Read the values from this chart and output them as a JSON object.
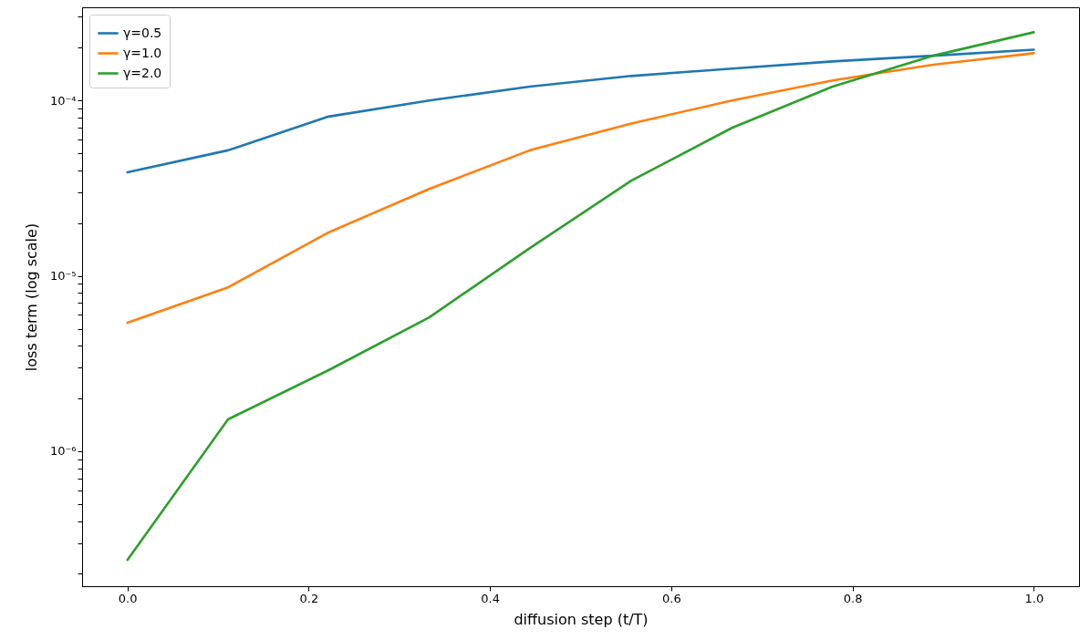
{
  "chart_data": {
    "type": "line",
    "xlabel": "diffusion step (t/T)",
    "ylabel": "loss term (log scale)",
    "log": "y",
    "grid": false,
    "legend": "top left",
    "marker": "none",
    "line_style": "solid",
    "x": [
      0,
      0.111,
      0.222,
      0.333,
      0.444,
      0.556,
      0.667,
      0.778,
      0.889,
      1.0
    ],
    "xlim": [
      -0.05,
      1.05
    ],
    "xticks": [
      {
        "value": 0,
        "label": "0.0"
      },
      0.2,
      0.4,
      0.6,
      0.8,
      {
        "value": 1,
        "label": "1.0"
      }
    ],
    "ylim": [
      1.7e-07,
      0.00034
    ],
    "yticks": [
      {
        "value": 2e-07,
        "label": null
      },
      {
        "value": 3e-07,
        "label": null
      },
      {
        "value": 4e-07,
        "label": null
      },
      {
        "value": 5e-07,
        "label": null
      },
      {
        "value": 6e-07,
        "label": null
      },
      {
        "value": 7e-07,
        "label": null
      },
      {
        "value": 8e-07,
        "label": null
      },
      {
        "value": 9e-07,
        "label": null
      },
      {
        "value": 1e-06,
        "label": "10⁻⁶"
      },
      {
        "value": 2e-06,
        "label": null
      },
      {
        "value": 3e-06,
        "label": null
      },
      {
        "value": 4e-06,
        "label": null
      },
      {
        "value": 5e-06,
        "label": null
      },
      {
        "value": 6e-06,
        "label": null
      },
      {
        "value": 7e-06,
        "label": null
      },
      {
        "value": 8e-06,
        "label": null
      },
      {
        "value": 9e-06,
        "label": null
      },
      {
        "value": 1e-05,
        "label": "10⁻⁵"
      },
      {
        "value": 2e-05,
        "label": null
      },
      {
        "value": 3e-05,
        "label": null
      },
      {
        "value": 4e-05,
        "label": null
      },
      {
        "value": 5e-05,
        "label": null
      },
      {
        "value": 6e-05,
        "label": null
      },
      {
        "value": 7e-05,
        "label": null
      },
      {
        "value": 8e-05,
        "label": null
      },
      {
        "value": 9e-05,
        "label": null
      },
      {
        "value": 0.0001,
        "label": "10⁻⁴"
      },
      {
        "value": 0.0002,
        "label": null
      },
      {
        "value": 0.0003,
        "label": null
      }
    ],
    "series": [
      {
        "name": "γ=0.5",
        "color": "#1f77b4",
        "values": [
          3.9e-05,
          5.2e-05,
          8.1e-05,
          0.0001,
          0.00012,
          0.000138,
          0.000152,
          0.000167,
          0.00018,
          0.000195
        ]
      },
      {
        "name": "γ=1.0",
        "color": "#ff7f0e",
        "values": [
          5.4e-06,
          8.6e-06,
          1.77e-05,
          3.13e-05,
          5.2e-05,
          7.4e-05,
          0.0001,
          0.00013,
          0.00016,
          0.000186
        ]
      },
      {
        "name": "γ=2.0",
        "color": "#2ca02c",
        "values": [
          2.4e-07,
          1.52e-06,
          2.9e-06,
          5.8e-06,
          1.44e-05,
          3.49e-05,
          6.98e-05,
          0.00012,
          0.00018,
          0.000245
        ]
      }
    ]
  }
}
